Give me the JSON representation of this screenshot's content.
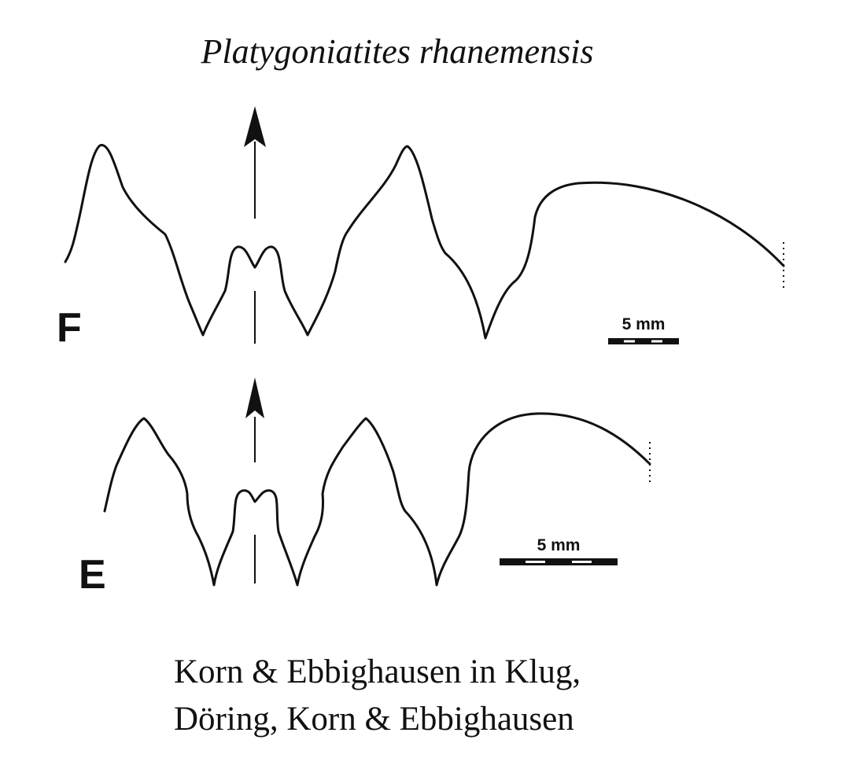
{
  "title": "Platygoniatites rhanemensis",
  "panels": [
    {
      "label": "F",
      "scale_label": "5 mm"
    },
    {
      "label": "E",
      "scale_label": "5 mm"
    }
  ],
  "citation": {
    "line1": "Korn & Ebbighausen in Klug,",
    "line2": "Döring, Korn & Ebbighausen"
  },
  "colors": {
    "ink": "#111111",
    "background": "#ffffff"
  }
}
